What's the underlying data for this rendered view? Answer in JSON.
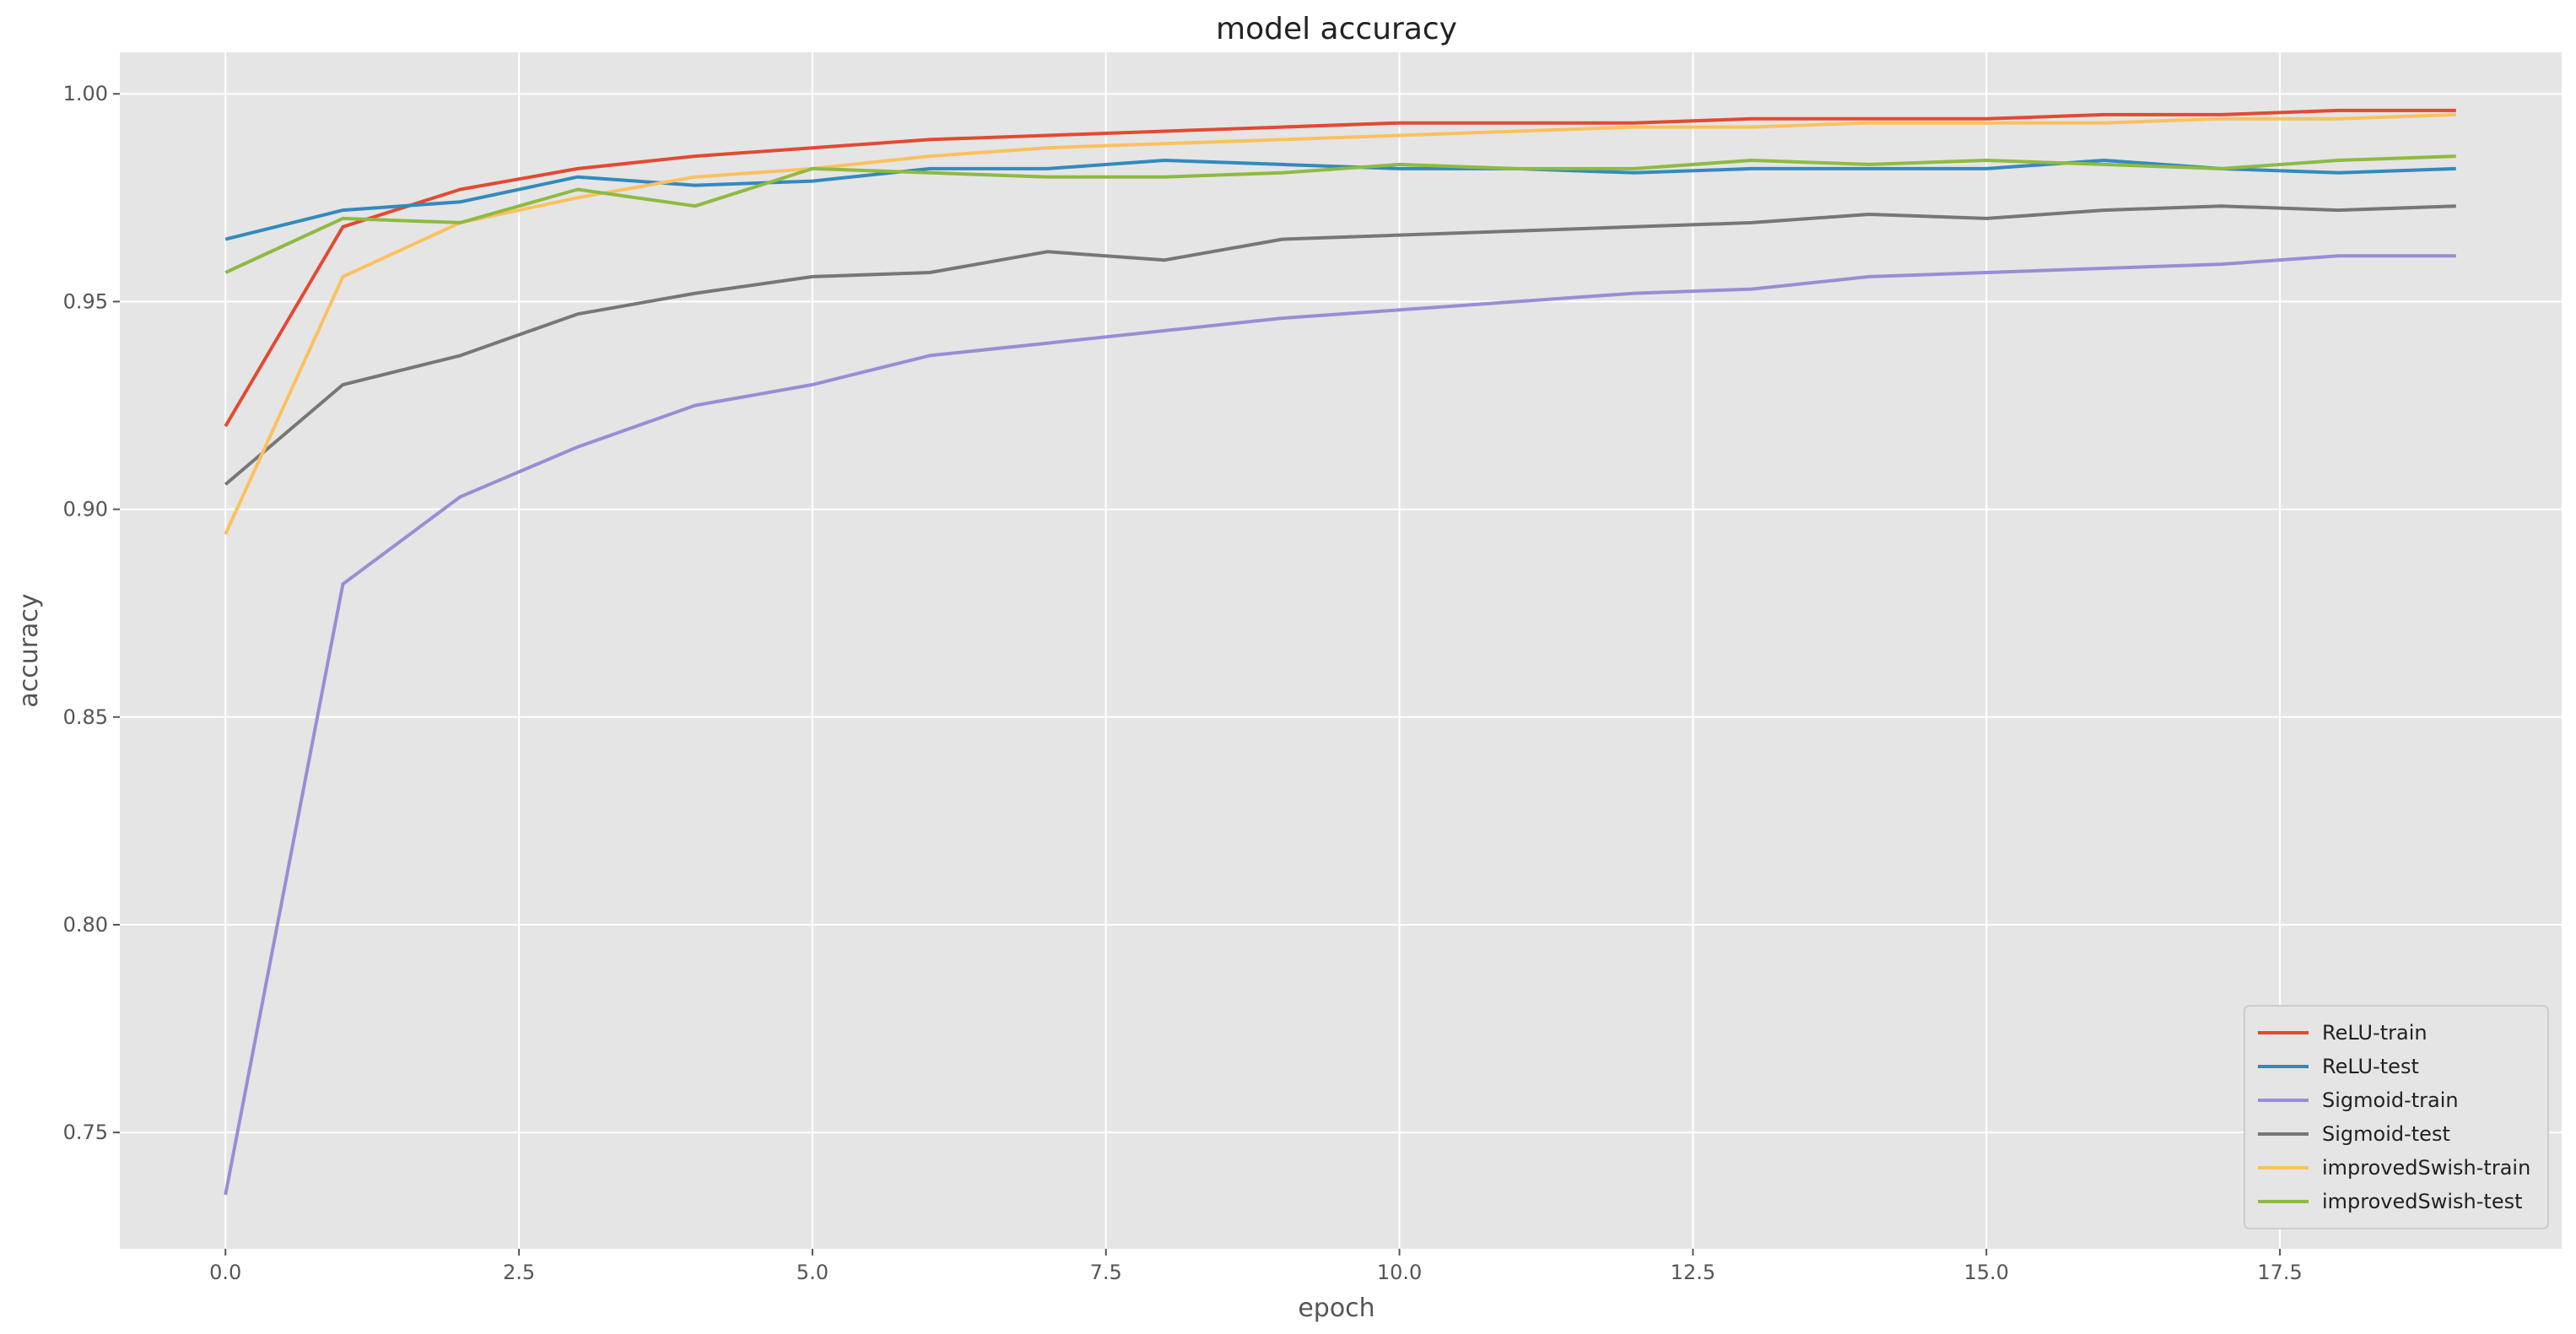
{
  "chart_data": {
    "type": "line",
    "title": "model accuracy",
    "xlabel": "epoch",
    "ylabel": "accuracy",
    "xlim": [
      -0.9,
      19.9
    ],
    "ylim": [
      0.722,
      1.01
    ],
    "x_ticks": [
      0.0,
      2.5,
      5.0,
      7.5,
      10.0,
      12.5,
      15.0,
      17.5
    ],
    "x_tick_labels": [
      "0.0",
      "2.5",
      "5.0",
      "7.5",
      "10.0",
      "12.5",
      "15.0",
      "17.5"
    ],
    "y_ticks": [
      0.75,
      0.8,
      0.85,
      0.9,
      0.95,
      1.0
    ],
    "y_tick_labels": [
      "0.75",
      "0.80",
      "0.85",
      "0.90",
      "0.95",
      "1.00"
    ],
    "grid": true,
    "legend_position": "bottom-right",
    "x": [
      0,
      1,
      2,
      3,
      4,
      5,
      6,
      7,
      8,
      9,
      10,
      11,
      12,
      13,
      14,
      15,
      16,
      17,
      18,
      19
    ],
    "series": [
      {
        "name": "ReLU-train",
        "color": "#E24A33",
        "values": [
          0.92,
          0.968,
          0.977,
          0.982,
          0.985,
          0.987,
          0.989,
          0.99,
          0.991,
          0.992,
          0.993,
          0.993,
          0.993,
          0.994,
          0.994,
          0.994,
          0.995,
          0.995,
          0.996,
          0.996
        ]
      },
      {
        "name": "ReLU-test",
        "color": "#348ABD",
        "values": [
          0.965,
          0.972,
          0.974,
          0.98,
          0.978,
          0.979,
          0.982,
          0.982,
          0.984,
          0.983,
          0.982,
          0.982,
          0.981,
          0.982,
          0.982,
          0.982,
          0.984,
          0.982,
          0.981,
          0.982
        ]
      },
      {
        "name": "Sigmoid-train",
        "color": "#988ED5",
        "values": [
          0.735,
          0.882,
          0.903,
          0.915,
          0.925,
          0.93,
          0.937,
          0.94,
          0.943,
          0.946,
          0.948,
          0.95,
          0.952,
          0.953,
          0.956,
          0.957,
          0.958,
          0.959,
          0.961,
          0.961
        ]
      },
      {
        "name": "Sigmoid-test",
        "color": "#777777",
        "values": [
          0.906,
          0.93,
          0.937,
          0.947,
          0.952,
          0.956,
          0.957,
          0.962,
          0.96,
          0.965,
          0.966,
          0.967,
          0.968,
          0.969,
          0.971,
          0.97,
          0.972,
          0.973,
          0.972,
          0.973
        ]
      },
      {
        "name": "improvedSwish-train",
        "color": "#FBC15E",
        "values": [
          0.894,
          0.956,
          0.969,
          0.975,
          0.98,
          0.982,
          0.985,
          0.987,
          0.988,
          0.989,
          0.99,
          0.991,
          0.992,
          0.992,
          0.993,
          0.993,
          0.993,
          0.994,
          0.994,
          0.995
        ]
      },
      {
        "name": "improvedSwish-test",
        "color": "#8EBA42",
        "values": [
          0.957,
          0.97,
          0.969,
          0.977,
          0.973,
          0.982,
          0.981,
          0.98,
          0.98,
          0.981,
          0.983,
          0.982,
          0.982,
          0.984,
          0.983,
          0.984,
          0.983,
          0.982,
          0.984,
          0.985
        ]
      }
    ]
  }
}
